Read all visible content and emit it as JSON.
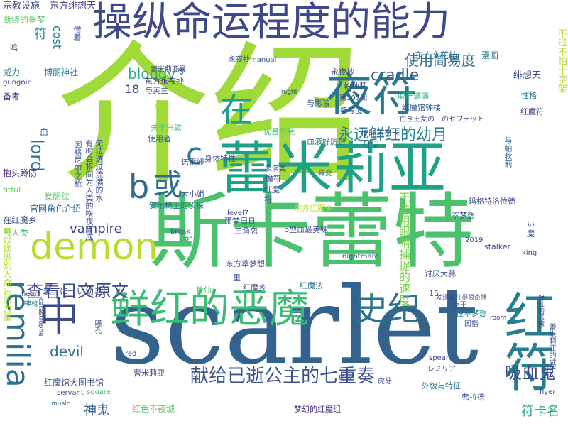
{
  "words": [
    {
      "text": "scarlet",
      "color": "#33638d"
    },
    {
      "text": "介绍",
      "color": "#a0da39"
    },
    {
      "text": "斯卡蕾特",
      "color": "#4ac16d"
    },
    {
      "text": "操纵命运程度的能力",
      "color": "#3f4889"
    },
    {
      "text": "蕾米莉亚",
      "color": "#1fa187"
    },
    {
      "text": "夜符",
      "color": "#2a788e"
    },
    {
      "text": "鲜红的恶魔",
      "color": "#3bbb75"
    },
    {
      "text": "remilia",
      "color": "#2c728e"
    },
    {
      "text": "demon",
      "color": "#b5de2b"
    },
    {
      "text": "红符",
      "color": "#277f8e"
    },
    {
      "text": "或",
      "color": "#2e6e8e"
    },
    {
      "text": "b",
      "color": "#31688e"
    },
    {
      "text": "c",
      "color": "#2a788e"
    },
    {
      "text": "在",
      "color": "#1f9e89"
    },
    {
      "text": "中",
      "color": "#3e4a89"
    },
    {
      "text": "史纪",
      "color": "#2c718e"
    },
    {
      "text": "献给已逝公主的七重奏",
      "color": "#3b528b"
    },
    {
      "text": "查看日文原文",
      "color": "#3e4989"
    },
    {
      "text": "永远鲜红的幼月",
      "color": "#26828e"
    },
    {
      "text": "吸血鬼",
      "color": "#3e4a89"
    },
    {
      "text": "使用简易度",
      "color": "#2f6b8e"
    },
    {
      "text": "cradle",
      "color": "#365d8d"
    },
    {
      "text": "bloody",
      "color": "#29af7f"
    },
    {
      "text": "lord",
      "color": "#2d718e"
    },
    {
      "text": "vampire",
      "color": "#3e4a89"
    },
    {
      "text": "devil",
      "color": "#2e6f8e"
    },
    {
      "text": "神鬼",
      "color": "#365c8d"
    },
    {
      "text": "符卡名",
      "color": "#22a884"
    },
    {
      "text": "东方绯想天",
      "color": "#433e85"
    },
    {
      "text": "绯想天",
      "color": "#3e4a89"
    },
    {
      "text": "漫画",
      "color": "#2a788e"
    },
    {
      "text": "东方文花帖",
      "color": "#2f6c8e"
    },
    {
      "text": "宗教设施",
      "color": "#3c4f8a"
    },
    {
      "text": "断绕的噩梦",
      "color": "#58c765"
    },
    {
      "text": "博丽神社",
      "color": "#2a768e"
    },
    {
      "text": "威力",
      "color": "#2c718e"
    },
    {
      "text": "gungnir",
      "color": "#3f4889"
    },
    {
      "text": "备考",
      "color": "#46337f"
    },
    {
      "text": "血",
      "color": "#32648e"
    },
    {
      "text": "抱头蹲防",
      "color": "#482576"
    },
    {
      "text": "fitful",
      "color": "#5ec962"
    },
    {
      "text": "爱丽丝",
      "color": "#54c568"
    },
    {
      "text": "官网角色介绍",
      "color": "#33638d"
    },
    {
      "text": "在红魔乡",
      "color": "#3d4e8a"
    },
    {
      "text": "与人类",
      "color": "#40bd72"
    },
    {
      "text": "可以操纵别人命运的力量",
      "color": "#addc30"
    },
    {
      "text": "heart",
      "color": "#433e85"
    },
    {
      "text": "神枪",
      "color": "#2a788e"
    },
    {
      "text": "catastrophe",
      "color": "#3f4889"
    },
    {
      "text": "红魔馆大图书馆",
      "color": "#3b528b"
    },
    {
      "text": "servant",
      "color": "#3b528b"
    },
    {
      "text": "music",
      "color": "#2c718e"
    },
    {
      "text": "square",
      "color": "#38b977"
    },
    {
      "text": "red",
      "color": "#3b528b"
    },
    {
      "text": "红色不夜城",
      "color": "#56c667"
    },
    {
      "text": "梦幻的红魔组",
      "color": "#472d7b"
    },
    {
      "text": "曹米莉亚",
      "color": "#3e4989"
    },
    {
      "text": "与觉",
      "color": "#3f4788"
    },
    {
      "text": "虎牙",
      "color": "#3a538b"
    },
    {
      "text": "无法用眼睛捕捉的速度",
      "color": "#7fd34e"
    },
    {
      "text": "外貌与特征",
      "color": "#2c718e"
    },
    {
      "text": "弗拉德",
      "color": "#3e4a89"
    },
    {
      "text": "flyer",
      "color": "#3e4a89"
    },
    {
      "text": "room",
      "color": "#3e4989"
    },
    {
      "text": "困播",
      "color": "#3a548c"
    },
    {
      "text": "在萃梦想",
      "color": "#25858e"
    },
    {
      "text": "夜王",
      "color": "#3b528b"
    },
    {
      "text": "15",
      "color": "#2e6f8e"
    },
    {
      "text": "发现此开得很奇怪",
      "color": "#433e85"
    },
    {
      "text": "鲜红的恶魔™",
      "color": "#414487"
    },
    {
      "text": "蕾米莉亚的威严",
      "color": "#3b528b"
    },
    {
      "text": "蕾米莉亚是",
      "color": "#414487"
    },
    {
      "text": "东方永夜抄",
      "color": "#472d7b"
    },
    {
      "text": "与芙兰",
      "color": "#33638d"
    },
    {
      "text": "18",
      "color": "#3e4a89"
    },
    {
      "text": "关于兴致",
      "color": "#54c568"
    },
    {
      "text": "使用者",
      "color": "#2c718e"
    },
    {
      "text": "诺雷娅",
      "color": "#3b528b"
    },
    {
      "text": "身体特性",
      "color": "#3e4a89"
    },
    {
      "text": "优昙华院",
      "color": "#48c16e"
    },
    {
      "text": "永夜抄",
      "color": "#3e4a89"
    },
    {
      "text": "与影狼",
      "color": "#3b528b"
    },
    {
      "text": "帕秋莉",
      "color": "#3e4989"
    },
    {
      "text": "技能与符卡",
      "color": "#3b528b"
    },
    {
      "text": "血液好厉害",
      "color": "#2c718e"
    },
    {
      "text": "威严满满",
      "color": "#26ad81"
    },
    {
      "text": "红魔馆钟楼",
      "color": "#3b528b"
    },
    {
      "text": "亡き王女の　のセプテット",
      "color": "#3e4989"
    },
    {
      "text": "第107回",
      "color": "#3e4a89"
    },
    {
      "text": "参考度",
      "color": "#3b528b"
    },
    {
      "text": "红魔符",
      "color": "#3e4a89"
    },
    {
      "text": "性格",
      "color": "#2c718e"
    },
    {
      "text": "魔符",
      "color": "#3e4a89"
    },
    {
      "text": "表演类",
      "color": "#3b528b"
    },
    {
      "text": "与帕秋莉",
      "color": "#33638d"
    },
    {
      "text": "玛格特洛依德",
      "color": "#3e4989"
    },
    {
      "text": "萃梦想",
      "color": "#3b528b"
    },
    {
      "text": "2019",
      "color": "#3e4a89"
    },
    {
      "text": "大小姐",
      "color": "#3b528b"
    },
    {
      "text": "安乐椅上的侦探",
      "color": "#2c718e"
    },
    {
      "text": "东方红魔乡",
      "color": "#b5de2b"
    },
    {
      "text": "level7",
      "color": "#3e4a89"
    },
    {
      "text": "噩梦周日",
      "color": "#3b528b"
    },
    {
      "text": "三角恋",
      "color": "#3e4989"
    },
    {
      "text": "b型血最美味",
      "color": "#3b528b"
    },
    {
      "text": "东方萃梦想",
      "color": "#3e4a89"
    },
    {
      "text": "nightmare",
      "color": "#3b528b"
    },
    {
      "text": "stalker",
      "color": "#3e4989"
    },
    {
      "text": "king",
      "color": "#3e4a89"
    },
    {
      "text": "讨厌大蒜",
      "color": "#3b528b"
    },
    {
      "text": "红魔法",
      "color": "#2c718e"
    },
    {
      "text": "铃仙",
      "color": "#54c568"
    },
    {
      "text": "红魔乡",
      "color": "#3e4a89"
    },
    {
      "text": "因格尼尔之枪",
      "color": "#3b528b"
    },
    {
      "text": "有时会将同为人类的咲夜当成",
      "color": "#3e4989"
    },
    {
      "text": "无法透过流满的水",
      "color": "#3e4a89"
    },
    {
      "text": "永夜抄manual",
      "color": "#3b528b"
    },
    {
      "text": "night",
      "color": "#3e4a89"
    },
    {
      "text": "受",
      "color": "#3b528b"
    },
    {
      "text": "鸣",
      "color": "#3e4989"
    },
    {
      "text": "借着",
      "color": "#3b528b"
    },
    {
      "text": "cost",
      "color": "#2a788e"
    },
    {
      "text": "符",
      "color": "#21918c"
    },
    {
      "text": "不过不怕十字架",
      "color": "#b5de2b"
    },
    {
      "text": "of",
      "color": "#b5de2b"
    },
    {
      "text": "永　に　い幼き月",
      "color": "#3e4a89"
    },
    {
      "text": "break",
      "color": "#3b528b"
    },
    {
      "text": "or",
      "color": "#3e4a89"
    },
    {
      "text": "瞳孔",
      "color": "#3b528b"
    },
    {
      "text": "spear",
      "color": "#3e4a89"
    },
    {
      "text": "レミリア",
      "color": "#3e4989"
    },
    {
      "text": "里",
      "color": "#3b528b"
    },
    {
      "text": "符",
      "color": "#3e4a89"
    },
    {
      "text": "红魔",
      "color": "#3b528b"
    },
    {
      "text": "魔",
      "color": "#3e4a89"
    },
    {
      "text": "い",
      "color": "#3b528b"
    },
    {
      "text": "吐伊",
      "color": "#3e4989"
    },
    {
      "text": "异变",
      "color": "#3b528b"
    }
  ]
}
